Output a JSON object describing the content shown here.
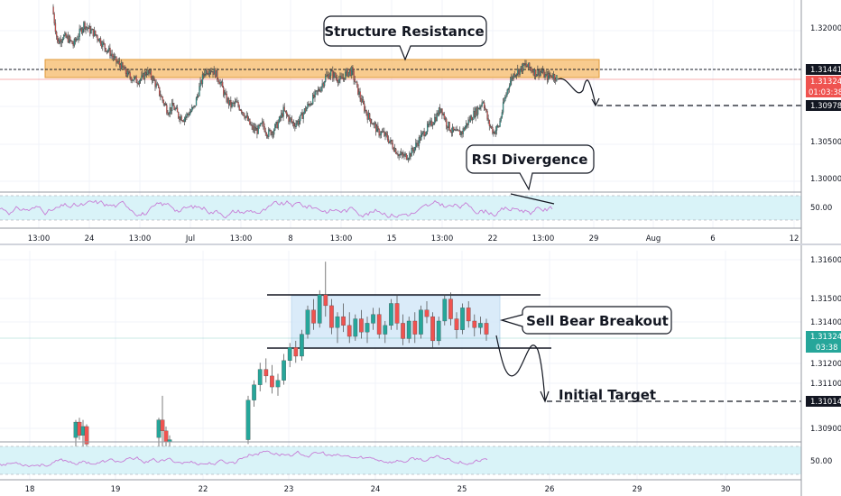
{
  "colors": {
    "up": "#26a69a",
    "down": "#ef5350",
    "wick": "#444444",
    "rsi_line": "#c77dd6",
    "rsi_band": "#d9f3f8",
    "zone_fill": "#f7c27a",
    "zone_stroke": "#e09a3a",
    "range_fill": "#d3e8f8",
    "price_badge_up": "#26a69a",
    "price_badge_red": "#ef5350",
    "badge_dark": "#131722"
  },
  "chart_data": [
    {
      "type": "candlestick",
      "title": "",
      "price_axis": {
        "ticks": [
          "1.32000",
          "1.30500",
          "1.30000"
        ],
        "price_labels": [
          {
            "text": "1.31441",
            "style": "dark"
          },
          {
            "text": "1.31324",
            "style": "red"
          },
          {
            "text": "01:03:38",
            "style": "red"
          },
          {
            "text": "1.30978",
            "style": "dark"
          }
        ],
        "ylim": [
          1.2988,
          1.3234
        ]
      },
      "time_axis": [
        "13:00",
        "24",
        "13:00",
        "Jul",
        "13:00",
        "8",
        "13:00",
        "15",
        "13:00",
        "22",
        "13:00",
        "29",
        "Aug",
        "6",
        "12"
      ],
      "close_path": [
        1.3225,
        1.3178,
        1.3186,
        1.3183,
        1.3175,
        1.3188,
        1.3202,
        1.3195,
        1.319,
        1.3182,
        1.3172,
        1.3165,
        1.3154,
        1.3148,
        1.3138,
        1.3132,
        1.3128,
        1.313,
        1.314,
        1.3132,
        1.3118,
        1.3102,
        1.3088,
        1.3094,
        1.3082,
        1.3078,
        1.3085,
        1.3092,
        1.3118,
        1.314,
        1.3143,
        1.3138,
        1.3125,
        1.3105,
        1.3095,
        1.3098,
        1.309,
        1.3078,
        1.3065,
        1.3062,
        1.307,
        1.3058,
        1.3062,
        1.3072,
        1.3088,
        1.3078,
        1.307,
        1.3075,
        1.3088,
        1.3098,
        1.3108,
        1.3118,
        1.3132,
        1.3138,
        1.3132,
        1.3128,
        1.3138,
        1.314,
        1.3118,
        1.3098,
        1.3082,
        1.3072,
        1.306,
        1.3058,
        1.305,
        1.304,
        1.303,
        1.3028,
        1.303,
        1.304,
        1.3052,
        1.3062,
        1.307,
        1.308,
        1.3092,
        1.3072,
        1.3062,
        1.3058,
        1.306,
        1.3072,
        1.3082,
        1.309,
        1.3102,
        1.3072,
        1.306,
        1.3068,
        1.31,
        1.3125,
        1.3138,
        1.3142,
        1.3148,
        1.3144,
        1.3138,
        1.314,
        1.3132,
        1.3135,
        1.3132
      ],
      "resistance_zone": [
        1.3139,
        1.3152
      ],
      "annotations": [
        "Structure Resistance",
        "RSI Divergence"
      ],
      "projected_target": 1.30978,
      "rsi": {
        "tick": "50.00",
        "upper": 70,
        "lower": 30,
        "range": [
          18,
          86
        ]
      }
    },
    {
      "type": "candlestick",
      "title": "",
      "price_axis": {
        "ticks": [
          "1.31600",
          "1.31500",
          "1.31400",
          "1.31200",
          "1.31100",
          "1.30900"
        ],
        "price_labels": [
          {
            "text": "1.31324",
            "style": "green"
          },
          {
            "text": "03:38",
            "style": "green"
          },
          {
            "text": "1.31014",
            "style": "dark"
          }
        ],
        "ylim": [
          1.3083,
          1.317
        ]
      },
      "time_axis": [
        "18",
        "19",
        "22",
        "23",
        "24",
        "25",
        "26",
        "29",
        "30"
      ],
      "candles": [
        [
          0,
          1.3085,
          1.3093,
          1.308,
          1.3092
        ],
        [
          1,
          1.3092,
          1.3094,
          1.3084,
          1.3086
        ],
        [
          2,
          1.3086,
          1.3093,
          1.308,
          1.309
        ],
        [
          3,
          1.309,
          1.3091,
          1.308,
          1.3082
        ],
        [
          4,
          1.3085,
          1.3094,
          1.308,
          1.3093
        ],
        [
          5,
          1.3093,
          1.3104,
          1.308,
          1.3088
        ],
        [
          6,
          1.3088,
          1.309,
          1.308,
          1.3083
        ],
        [
          7,
          1.3083,
          1.3086,
          1.308,
          1.3084
        ],
        [
          8,
          1.3084,
          1.3104,
          1.3082,
          1.3102
        ],
        [
          9,
          1.3102,
          1.3111,
          1.3099,
          1.3109
        ],
        [
          10,
          1.3109,
          1.3119,
          1.3106,
          1.3116
        ],
        [
          11,
          1.3116,
          1.3121,
          1.311,
          1.3113
        ],
        [
          12,
          1.3113,
          1.3118,
          1.3105,
          1.3108
        ],
        [
          13,
          1.3108,
          1.3114,
          1.3104,
          1.3111
        ],
        [
          14,
          1.3111,
          1.3123,
          1.3109,
          1.312
        ],
        [
          15,
          1.312,
          1.3128,
          1.3117,
          1.3126
        ],
        [
          16,
          1.3126,
          1.3129,
          1.3119,
          1.3122
        ],
        [
          17,
          1.3122,
          1.3134,
          1.312,
          1.3132
        ],
        [
          18,
          1.3132,
          1.3145,
          1.313,
          1.3143
        ],
        [
          19,
          1.3143,
          1.3148,
          1.3134,
          1.3137
        ],
        [
          20,
          1.3137,
          1.3152,
          1.3135,
          1.315
        ],
        [
          21,
          1.315,
          1.3165,
          1.314,
          1.3145
        ],
        [
          22,
          1.3145,
          1.3148,
          1.3132,
          1.3135
        ],
        [
          23,
          1.3135,
          1.3142,
          1.3128,
          1.314
        ],
        [
          24,
          1.314,
          1.3146,
          1.3133,
          1.3136
        ],
        [
          25,
          1.3136,
          1.3142,
          1.3128,
          1.3131
        ],
        [
          26,
          1.3131,
          1.3141,
          1.3129,
          1.3139
        ],
        [
          27,
          1.3139,
          1.3143,
          1.313,
          1.3133
        ],
        [
          28,
          1.3133,
          1.314,
          1.3128,
          1.3137
        ],
        [
          29,
          1.3137,
          1.3144,
          1.3134,
          1.3141
        ],
        [
          30,
          1.3141,
          1.3144,
          1.313,
          1.3132
        ],
        [
          31,
          1.3132,
          1.3138,
          1.3128,
          1.3136
        ],
        [
          32,
          1.3136,
          1.3148,
          1.3134,
          1.3146
        ],
        [
          33,
          1.3146,
          1.315,
          1.3134,
          1.3137
        ],
        [
          34,
          1.3137,
          1.3141,
          1.3127,
          1.313
        ],
        [
          35,
          1.313,
          1.314,
          1.3128,
          1.3138
        ],
        [
          36,
          1.3138,
          1.3142,
          1.3128,
          1.3132
        ],
        [
          37,
          1.3132,
          1.3145,
          1.313,
          1.3143
        ],
        [
          38,
          1.3143,
          1.3147,
          1.3137,
          1.314
        ],
        [
          39,
          1.314,
          1.3142,
          1.3126,
          1.3129
        ],
        [
          40,
          1.3129,
          1.314,
          1.3127,
          1.3138
        ],
        [
          41,
          1.3138,
          1.315,
          1.3136,
          1.3148
        ],
        [
          42,
          1.3148,
          1.3151,
          1.3136,
          1.3139
        ],
        [
          43,
          1.3139,
          1.3142,
          1.313,
          1.3134
        ],
        [
          44,
          1.3134,
          1.3146,
          1.3132,
          1.3144
        ],
        [
          45,
          1.3144,
          1.3147,
          1.3135,
          1.3138
        ],
        [
          46,
          1.3138,
          1.3141,
          1.3131,
          1.3135
        ],
        [
          47,
          1.3135,
          1.314,
          1.3132,
          1.3137
        ],
        [
          48,
          1.3137,
          1.3139,
          1.3129,
          1.3132
        ]
      ],
      "range_box": [
        1.3128,
        1.3152
      ],
      "annotations": [
        "Sell Bear Breakout",
        "Initial Target"
      ],
      "projected_target": 1.31014,
      "rsi": {
        "tick": "50.00",
        "upper": 70,
        "lower": 30,
        "range": [
          15,
          85
        ]
      }
    }
  ]
}
